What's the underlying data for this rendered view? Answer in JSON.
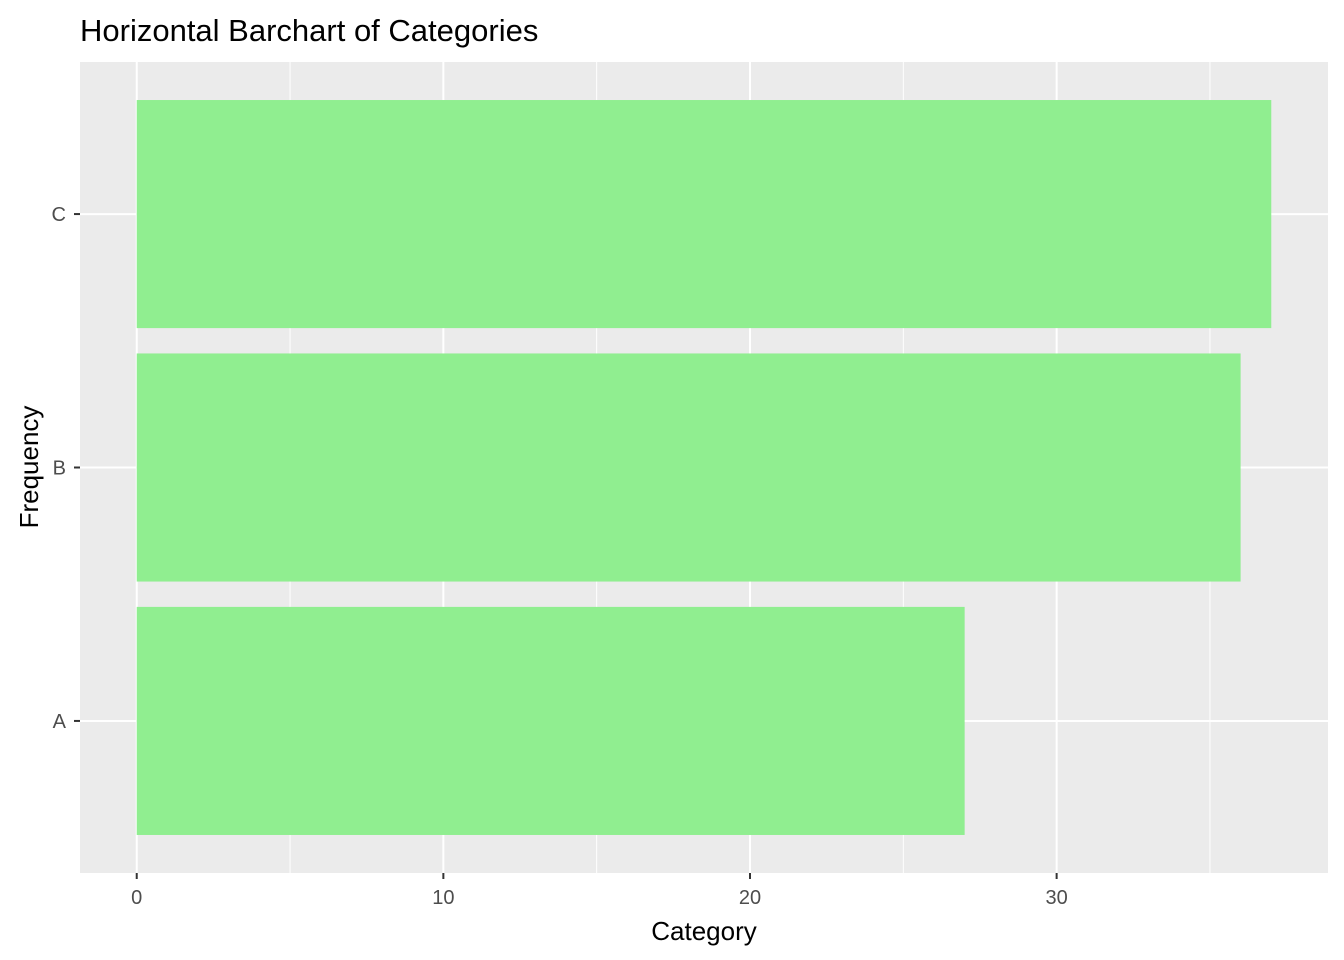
{
  "chart_data": {
    "type": "bar",
    "orientation": "horizontal",
    "title": "Horizontal Barchart of Categories",
    "xlabel": "Category",
    "ylabel": "Frequency",
    "categories": [
      "A",
      "B",
      "C"
    ],
    "values": [
      27,
      36,
      37
    ],
    "xlim": [
      -1.85,
      38.85
    ],
    "xticks": [
      0,
      10,
      20,
      30
    ],
    "xticks_minor": [
      5,
      15,
      25,
      35
    ],
    "grid": true,
    "bar_color": "#90EE90",
    "panel_background": "#EBEBEB",
    "grid_color": "#FFFFFF"
  }
}
